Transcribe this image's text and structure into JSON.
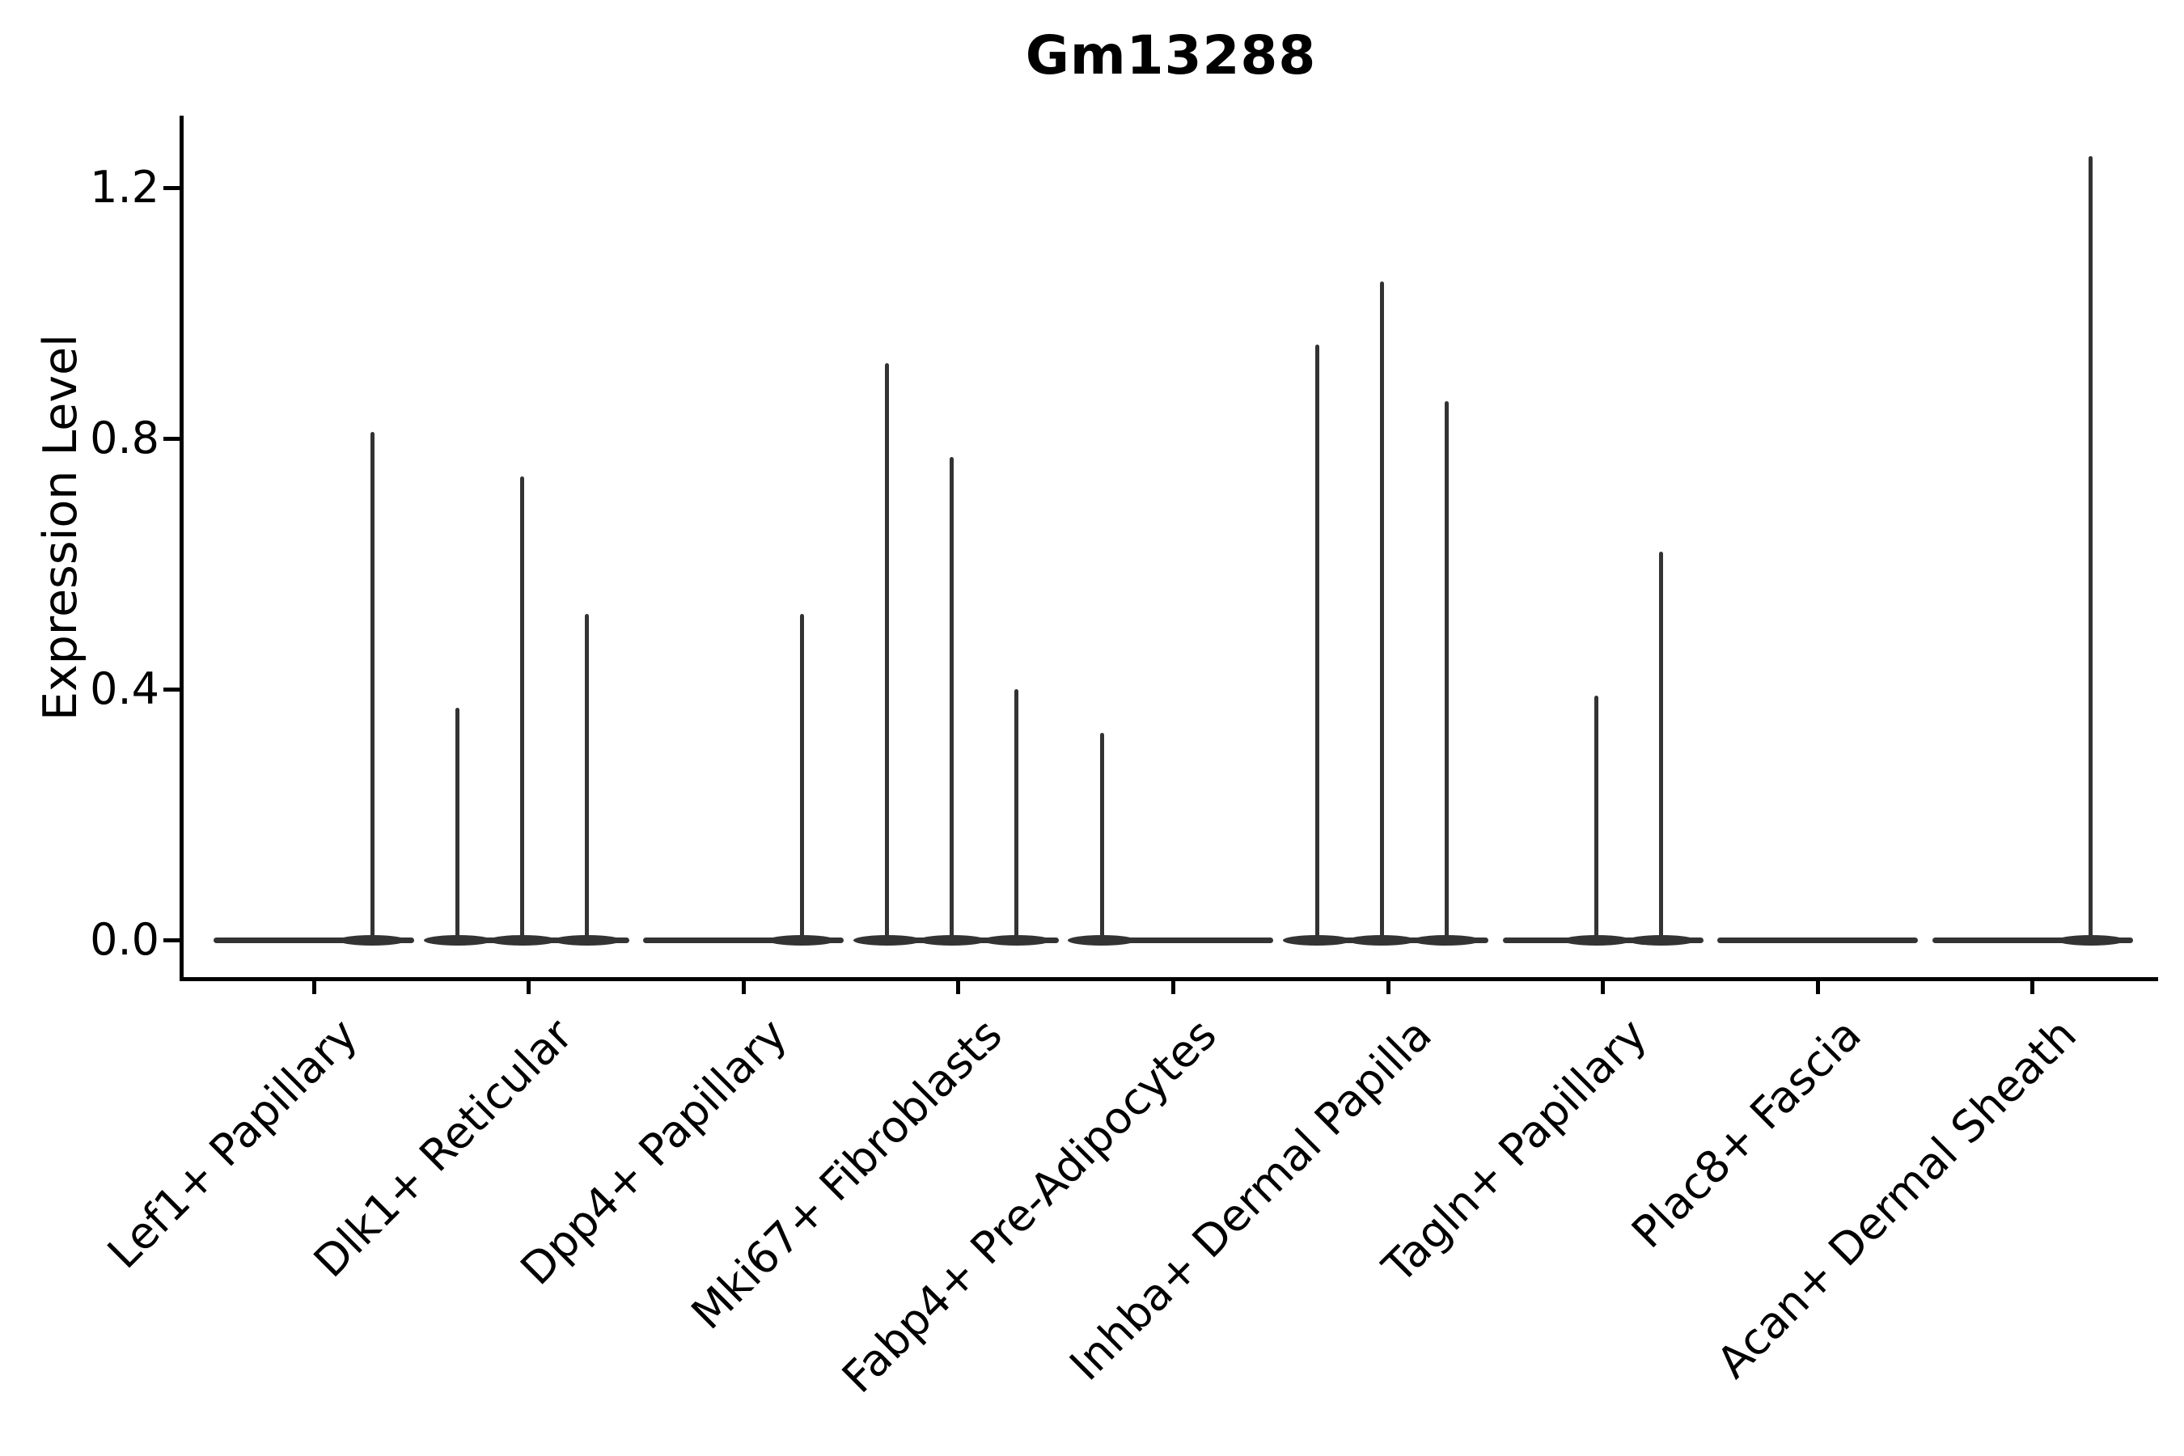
{
  "chart_data": {
    "type": "violin",
    "title": "Gm13288",
    "ylabel": "Expression Level",
    "xlabel": "",
    "ylim": [
      -0.06,
      1.32
    ],
    "yticks": [
      0.0,
      0.4,
      0.8,
      1.2
    ],
    "ytick_labels": [
      "0.0",
      "0.4",
      "0.8",
      "1.2"
    ],
    "grid": false,
    "legend": null,
    "violins_per_group": 3,
    "baseline_value": 0.0,
    "line_color": "#333333",
    "axis_color": "#000000",
    "background": "#ffffff",
    "categories": [
      {
        "label": "Lef1+ Papillary",
        "spikes": [
          {
            "slot": 2,
            "value": 0.81
          }
        ]
      },
      {
        "label": "Dlk1+ Reticular",
        "spikes": [
          {
            "slot": 0,
            "value": 0.37
          },
          {
            "slot": 1,
            "value": 0.74
          },
          {
            "slot": 2,
            "value": 0.52
          }
        ]
      },
      {
        "label": "Dpp4+ Papillary",
        "spikes": [
          {
            "slot": 2,
            "value": 0.52
          }
        ]
      },
      {
        "label": "Mki67+ Fibroblasts",
        "spikes": [
          {
            "slot": 0,
            "value": 0.92
          },
          {
            "slot": 1,
            "value": 0.77
          },
          {
            "slot": 2,
            "value": 0.4
          }
        ]
      },
      {
        "label": "Fabp4+ Pre-Adipocytes",
        "spikes": [
          {
            "slot": 0,
            "value": 0.33
          }
        ]
      },
      {
        "label": "Inhba+ Dermal Papilla",
        "spikes": [
          {
            "slot": 0,
            "value": 0.95
          },
          {
            "slot": 1,
            "value": 1.05
          },
          {
            "slot": 2,
            "value": 0.86
          }
        ]
      },
      {
        "label": "Tagln+ Papillary",
        "spikes": [
          {
            "slot": 1,
            "value": 0.39
          },
          {
            "slot": 2,
            "value": 0.62
          }
        ]
      },
      {
        "label": "Plac8+ Fascia",
        "spikes": []
      },
      {
        "label": "Acan+ Dermal Sheath",
        "spikes": [
          {
            "slot": 2,
            "value": 1.25
          }
        ]
      }
    ]
  }
}
